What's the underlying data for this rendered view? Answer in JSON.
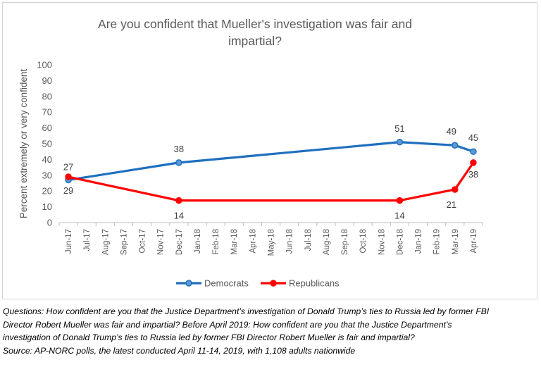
{
  "chart_data": {
    "type": "line",
    "title_lines": [
      "Are you confident that Mueller's investigation was fair and",
      "impartial?"
    ],
    "xlabel": "",
    "ylabel": "Percent extremely or very confident",
    "ylim": [
      0,
      100
    ],
    "yticks": [
      0,
      10,
      20,
      30,
      40,
      50,
      60,
      70,
      80,
      90,
      100
    ],
    "categories": [
      "Jun-17",
      "Jul-17",
      "Aug-17",
      "Sep-17",
      "Oct-17",
      "Nov-17",
      "Dec-17",
      "Jan-18",
      "Feb-18",
      "Mar-18",
      "Apr-18",
      "May-18",
      "Jun-18",
      "Jul-18",
      "Aug-18",
      "Sep-18",
      "Oct-18",
      "Nov-18",
      "Dec-18",
      "Jan-19",
      "Feb-19",
      "Mar-19",
      "Apr-19"
    ],
    "grid": false,
    "legend_position": "bottom",
    "series": [
      {
        "name": "Democrats",
        "color": "#1f6fbf",
        "marker_fill": "#5b9bd5",
        "points": [
          {
            "x": "Jun-17",
            "y": 27
          },
          {
            "x": "Dec-17",
            "y": 38
          },
          {
            "x": "Dec-18",
            "y": 51
          },
          {
            "x": "Mar-19",
            "y": 49
          },
          {
            "x": "Apr-19",
            "y": 45
          }
        ],
        "labels": [
          "27",
          "38",
          "51",
          "49",
          "45"
        ]
      },
      {
        "name": "Republicans",
        "color": "#ff0000",
        "marker_fill": "#ff0000",
        "points": [
          {
            "x": "Jun-17",
            "y": 29
          },
          {
            "x": "Dec-17",
            "y": 14
          },
          {
            "x": "Dec-18",
            "y": 14
          },
          {
            "x": "Mar-19",
            "y": 21
          },
          {
            "x": "Apr-19",
            "y": 38
          }
        ],
        "labels": [
          "29",
          "14",
          "14",
          "21",
          "38"
        ]
      }
    ]
  },
  "caption": {
    "lines": [
      "Questions: How confident are you that the Justice Department’s investigation of Donald Trump’s ties to Russia led by former FBI",
      "Director Robert Mueller was fair and impartial? Before April 2019: How confident are you that the Justice Department’s",
      "investigation of Donald Trump’s ties to Russia led by former FBI Director Robert Mueller is fair and impartial?",
      "Source: AP-NORC polls, the latest conducted April 11-14, 2019, with 1,108 adults nationwide"
    ]
  }
}
